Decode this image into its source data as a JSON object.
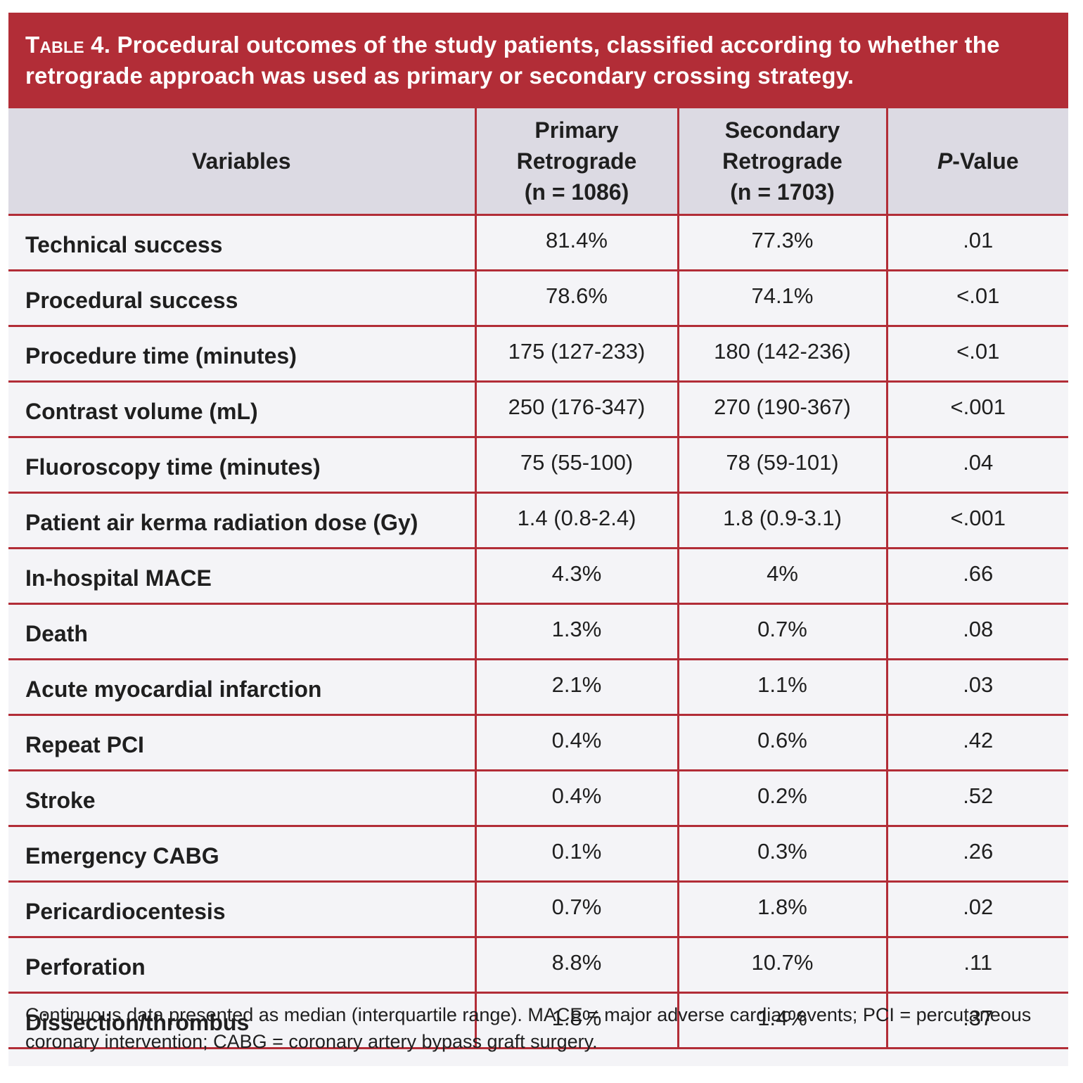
{
  "table": {
    "title_label": "Table 4.",
    "title_text": "Procedural outcomes of the study patients, classified according to whether the retrograde approach was used as primary or secondary crossing strategy.",
    "headers": {
      "variables": "Variables",
      "primary": [
        "Primary",
        "Retrograde",
        "(n = 1086)"
      ],
      "secondary": [
        "Secondary",
        "Retrograde",
        "(n  = 1703)"
      ],
      "pvalue_italic": "P",
      "pvalue_rest": "-Value"
    },
    "rows": [
      {
        "variable": "Technical success",
        "primary": "81.4%",
        "secondary": "77.3%",
        "p": ".01"
      },
      {
        "variable": "Procedural success",
        "primary": "78.6%",
        "secondary": "74.1%",
        "p": "<.01"
      },
      {
        "variable": "Procedure time (minutes)",
        "primary": "175 (127-233)",
        "secondary": "180 (142-236)",
        "p": "<.01"
      },
      {
        "variable": "Contrast volume (mL)",
        "primary": "250 (176-347)",
        "secondary": "270 (190-367)",
        "p": "<.001"
      },
      {
        "variable": "Fluoroscopy time (minutes)",
        "primary": "75 (55-100)",
        "secondary": "78 (59-101)",
        "p": ".04"
      },
      {
        "variable": "Patient air kerma radiation dose (Gy)",
        "primary": "1.4 (0.8-2.4)",
        "secondary": "1.8 (0.9-3.1)",
        "p": "<.001"
      },
      {
        "variable": "In-hospital MACE",
        "primary": "4.3%",
        "secondary": "4%",
        "p": ".66"
      },
      {
        "variable": "Death",
        "primary": "1.3%",
        "secondary": "0.7%",
        "p": ".08"
      },
      {
        "variable": "Acute myocardial infarction",
        "primary": "2.1%",
        "secondary": "1.1%",
        "p": ".03"
      },
      {
        "variable": "Repeat PCI",
        "primary": "0.4%",
        "secondary": "0.6%",
        "p": ".42"
      },
      {
        "variable": "Stroke",
        "primary": "0.4%",
        "secondary": "0.2%",
        "p": ".52"
      },
      {
        "variable": "Emergency CABG",
        "primary": "0.1%",
        "secondary": "0.3%",
        "p": ".26"
      },
      {
        "variable": "Pericardiocentesis",
        "primary": "0.7%",
        "secondary": "1.8%",
        "p": ".02"
      },
      {
        "variable": "Perforation",
        "primary": "8.8%",
        "secondary": "10.7%",
        "p": ".11"
      },
      {
        "variable": "Dissection/thrombus",
        "primary": "1.8%",
        "secondary": "1.4%",
        "p": ".37"
      }
    ],
    "footnote": "Continuous data presented as median (interquartile range). MACE = major adverse cardiac events; PCI = percutaneous coronary intervention; CABG = coronary artery bypass graft surgery.",
    "colors": {
      "title_background": "#b22d37",
      "header_background": "#dcdae3",
      "body_background": "#f4f4f7",
      "rule": "#b22d37"
    }
  }
}
